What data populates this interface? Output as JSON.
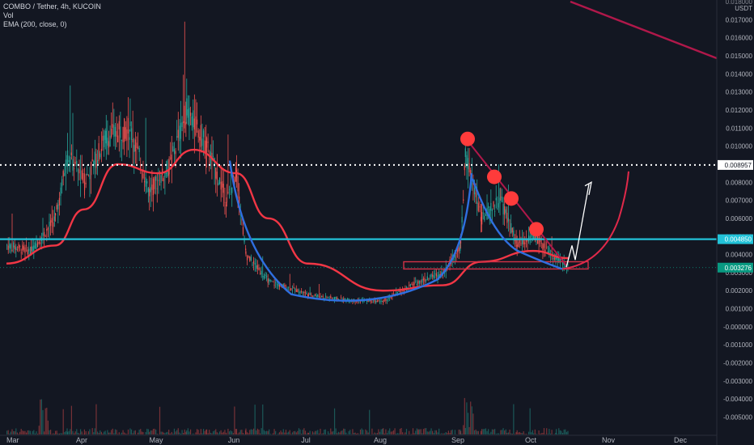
{
  "legend": {
    "symbol": "COMBO / Tether, 4h, KUCOIN",
    "volume": "Vol",
    "indicator": "EMA (200, close, 0)"
  },
  "chart_data": {
    "type": "candlestick",
    "symbol": "COMBO / Tether",
    "interval": "4h",
    "exchange": "KUCOIN",
    "currency_label": "USDT",
    "x_ticks": [
      "Mar",
      "Apr",
      "May",
      "Jun",
      "Jul",
      "Aug",
      "Sep",
      "Oct",
      "Nov",
      "Dec"
    ],
    "y_ticks": [
      "0.017000",
      "0.016000",
      "0.015000",
      "0.014000",
      "0.013000",
      "0.012000",
      "0.011000",
      "0.010000",
      "0.009000",
      "0.008000",
      "0.007000",
      "0.006000",
      "0.005000",
      "0.004000",
      "0.003000",
      "0.002000",
      "0.001000",
      "-0.000000",
      "-0.001000",
      "-0.002000",
      "-0.003000",
      "-0.004000",
      "-0.005000"
    ],
    "y_top_partial": "0.018000",
    "ylim": [
      -0.0055,
      0.018
    ],
    "price_levels": {
      "dotted_resistance": "0.008957",
      "horizontal_support": "0.004850",
      "current_price": "0.003276"
    },
    "price_path": [
      [
        "Mar",
        0.0045
      ],
      [
        "Mar-10",
        0.0042
      ],
      [
        "Mar-20",
        0.006
      ],
      [
        "Mar-25",
        0.0095
      ],
      [
        "Apr-01",
        0.008
      ],
      [
        "Apr-10",
        0.0105
      ],
      [
        "Apr-20",
        0.011
      ],
      [
        "Apr-28",
        0.0075
      ],
      [
        "May-05",
        0.0088
      ],
      [
        "May-12",
        0.012
      ],
      [
        "May-20",
        0.01
      ],
      [
        "May-28",
        0.007
      ],
      [
        "Jun-01",
        0.0085
      ],
      [
        "Jun-05",
        0.004
      ],
      [
        "Jun-15",
        0.0025
      ],
      [
        "Jul-01",
        0.0018
      ],
      [
        "Jul-15",
        0.0015
      ],
      [
        "Aug-01",
        0.0014
      ],
      [
        "Aug-15",
        0.0025
      ],
      [
        "Aug-25",
        0.003
      ],
      [
        "Sep-01",
        0.0045
      ],
      [
        "Sep-03",
        0.0095
      ],
      [
        "Sep-10",
        0.006
      ],
      [
        "Sep-18",
        0.007
      ],
      [
        "Sep-25",
        0.0045
      ],
      [
        "Oct-01",
        0.005
      ],
      [
        "Oct-10",
        0.0038
      ],
      [
        "Oct-15",
        0.0033
      ]
    ],
    "ema_200": [
      [
        "Mar",
        0.0035
      ],
      [
        "Mar-20",
        0.0045
      ],
      [
        "Apr-01",
        0.0065
      ],
      [
        "Apr-15",
        0.009
      ],
      [
        "May-01",
        0.0085
      ],
      [
        "May-15",
        0.0098
      ],
      [
        "Jun-01",
        0.0085
      ],
      [
        "Jun-15",
        0.006
      ],
      [
        "Jul-01",
        0.0035
      ],
      [
        "Aug-01",
        0.002
      ],
      [
        "Aug-25",
        0.0023
      ],
      [
        "Sep-10",
        0.0036
      ],
      [
        "Oct-01",
        0.0042
      ],
      [
        "Oct-15",
        0.0038
      ]
    ],
    "annotations": {
      "descending_trendline_points": 4,
      "rounded_bottom_curve": true,
      "projected_breakout_arrow": true
    },
    "grid": false,
    "legend_position": "top-left"
  },
  "colors": {
    "background": "#131722",
    "up_candle": "#26a69a",
    "down_candle": "#ef5350",
    "ema": "#f23645",
    "support_line": "#22c2d8",
    "current_price": "#089981",
    "resistance_dots": "#ffffff",
    "blue_curve": "#2f6fe0",
    "red_curve": "#e0294a",
    "trendline": "#b0184a",
    "marker": "#ff3b3b"
  }
}
